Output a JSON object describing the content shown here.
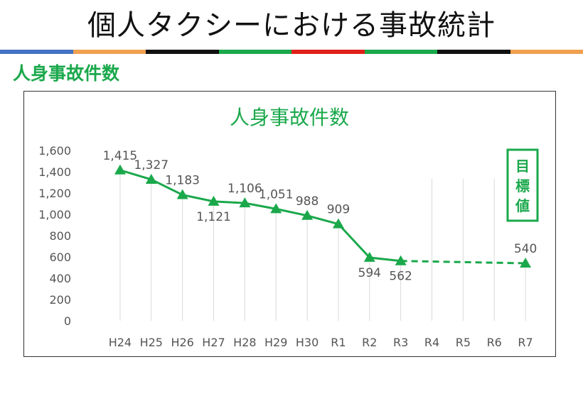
{
  "slide": {
    "title": "個人タクシーにおける事故統計",
    "section_heading": "人身事故件数",
    "stripe_colors": [
      "#4472c4",
      "#f0a050",
      "#111111",
      "#1aa84b",
      "#e0201a",
      "#1aa84b",
      "#111111",
      "#f0a050"
    ]
  },
  "chart_data": {
    "type": "line",
    "title": "人身事故件数",
    "categories": [
      "H24",
      "H25",
      "H26",
      "H27",
      "H28",
      "H29",
      "H30",
      "R1",
      "R2",
      "R3",
      "R4",
      "R5",
      "R6",
      "R7"
    ],
    "series": [
      {
        "values": [
          1415,
          1327,
          1183,
          1121,
          1106,
          1051,
          988,
          909,
          594,
          562,
          null,
          null,
          null,
          540
        ],
        "data_labels": [
          "1,415",
          "1,327",
          "1,183",
          "1,121",
          "1,106",
          "1,051",
          "988",
          "909",
          "594",
          "562",
          null,
          null,
          null,
          "540"
        ],
        "label_side": [
          "above",
          "above",
          "above",
          "below",
          "above",
          "above",
          "above",
          "above",
          "below",
          "below",
          null,
          null,
          null,
          "above"
        ],
        "color": "#1aa84b",
        "marker": "triangle",
        "projection": {
          "from": "R3",
          "to": "R7",
          "style": "dashed"
        }
      }
    ],
    "y_ticks": [
      "1,600",
      "1,400",
      "1,200",
      "1,000",
      "800",
      "600",
      "400",
      "200",
      "0"
    ],
    "ylim": [
      0,
      1600
    ],
    "y_step": 200,
    "grid": {
      "vertical_drop_lines": true
    },
    "target_box": {
      "text": [
        "目",
        "標",
        "値"
      ],
      "color": "#1aa84b"
    }
  }
}
